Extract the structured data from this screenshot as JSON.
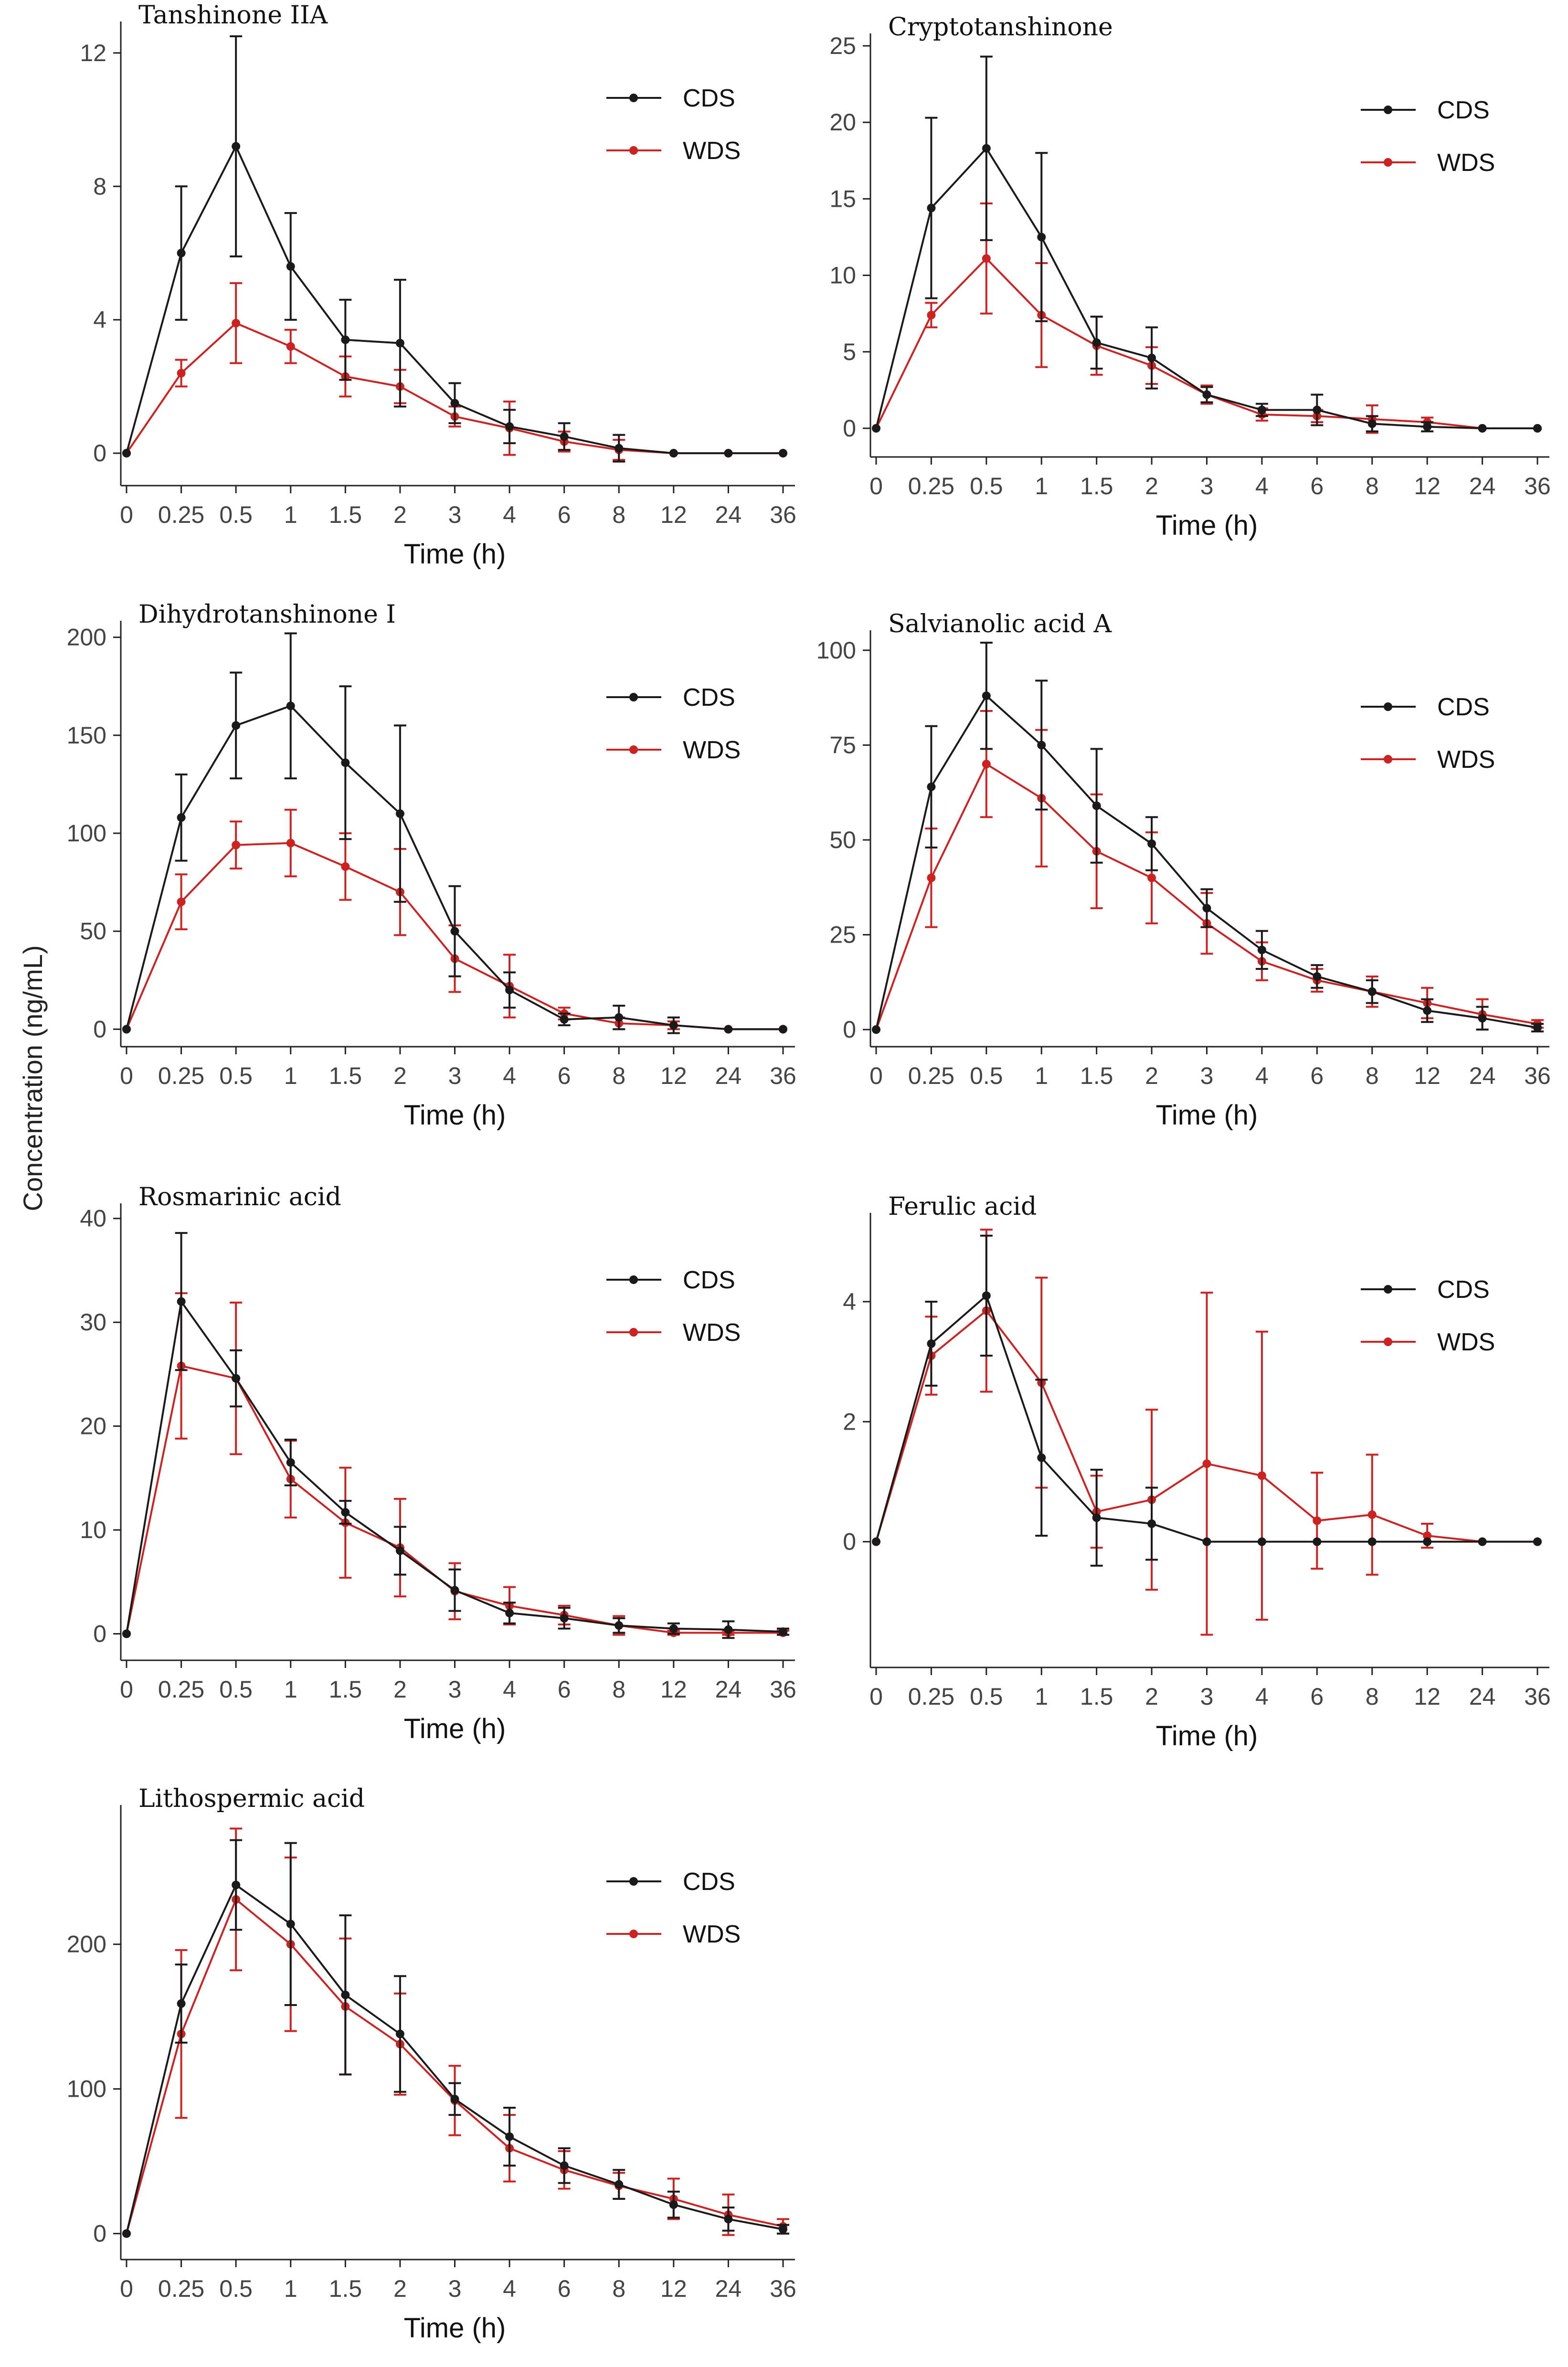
{
  "figure": {
    "ylabel": "Concentration (ng/mL)",
    "colors": {
      "CDS": "#1a1a1a",
      "WDS": "#cc2222"
    }
  },
  "chart_data": [
    {
      "type": "line",
      "title": "Tanshinone IIA",
      "xlabel": "Time (h)",
      "ylabel": "Concentration (ng/mL)",
      "categories": [
        "0",
        "0.25",
        "0.5",
        "1",
        "1.5",
        "2",
        "3",
        "4",
        "6",
        "8",
        "12",
        "24",
        "36"
      ],
      "ylim": [
        -0.8,
        12.8
      ],
      "yticks": [
        0,
        4,
        8,
        12
      ],
      "legend_position": "top-right",
      "series": [
        {
          "name": "CDS",
          "values": [
            0,
            6.0,
            9.2,
            5.6,
            3.4,
            3.3,
            1.5,
            0.8,
            0.5,
            0.15,
            0,
            0,
            0
          ],
          "err": [
            0,
            2.0,
            3.3,
            1.6,
            1.2,
            1.9,
            0.6,
            0.5,
            0.4,
            0.4,
            0,
            0,
            0
          ]
        },
        {
          "name": "WDS",
          "values": [
            0,
            2.4,
            3.9,
            3.2,
            2.3,
            2.0,
            1.1,
            0.75,
            0.35,
            0.1,
            0,
            0,
            0
          ],
          "err": [
            0,
            0.4,
            1.2,
            0.5,
            0.6,
            0.5,
            0.3,
            0.8,
            0.3,
            0.3,
            0,
            0,
            0
          ]
        }
      ]
    },
    {
      "type": "line",
      "title": "Cryptotanshinone",
      "xlabel": "Time (h)",
      "ylabel": "Concentration (ng/mL)",
      "categories": [
        "0",
        "0.25",
        "0.5",
        "1",
        "1.5",
        "2",
        "3",
        "4",
        "6",
        "8",
        "12",
        "24",
        "36"
      ],
      "ylim": [
        -1.5,
        25.5
      ],
      "yticks": [
        0,
        5,
        10,
        15,
        20,
        25
      ],
      "legend_position": "top-right",
      "series": [
        {
          "name": "CDS",
          "values": [
            0,
            14.4,
            18.3,
            12.5,
            5.6,
            4.6,
            2.2,
            1.2,
            1.2,
            0.3,
            0.1,
            0,
            0
          ],
          "err": [
            0,
            5.9,
            6.0,
            5.5,
            1.7,
            2.0,
            0.5,
            0.4,
            1.0,
            0.5,
            0.3,
            0,
            0
          ]
        },
        {
          "name": "WDS",
          "values": [
            0,
            7.4,
            11.1,
            7.4,
            5.4,
            4.1,
            2.2,
            0.9,
            0.8,
            0.6,
            0.4,
            0,
            0
          ],
          "err": [
            0,
            0.8,
            3.6,
            3.4,
            1.9,
            1.2,
            0.6,
            0.4,
            0.4,
            0.9,
            0.3,
            0,
            0
          ]
        }
      ]
    },
    {
      "type": "line",
      "title": "Dihydrotanshinone I",
      "xlabel": "Time (h)",
      "ylabel": "Concentration (ng/mL)",
      "categories": [
        "0",
        "0.25",
        "0.5",
        "1",
        "1.5",
        "2",
        "3",
        "4",
        "6",
        "8",
        "12",
        "24",
        "36"
      ],
      "ylim": [
        -6,
        206
      ],
      "yticks": [
        0,
        50,
        100,
        150,
        200
      ],
      "legend_position": "top-right",
      "series": [
        {
          "name": "CDS",
          "values": [
            0,
            108,
            155,
            165,
            136,
            110,
            50,
            20,
            5,
            6,
            2,
            0,
            0
          ],
          "err": [
            0,
            22,
            27,
            37,
            39,
            45,
            23,
            9,
            3,
            6,
            4,
            0,
            0
          ]
        },
        {
          "name": "WDS",
          "values": [
            0,
            65,
            94,
            95,
            83,
            70,
            36,
            22,
            8,
            3,
            2,
            0,
            0
          ],
          "err": [
            0,
            14,
            12,
            17,
            17,
            22,
            17,
            16,
            3,
            3,
            2,
            0,
            0
          ]
        }
      ]
    },
    {
      "type": "line",
      "title": "Salvianolic acid A",
      "xlabel": "Time (h)",
      "ylabel": "Concentration (ng/mL)",
      "categories": [
        "0",
        "0.25",
        "0.5",
        "1",
        "1.5",
        "2",
        "3",
        "4",
        "6",
        "8",
        "12",
        "24",
        "36"
      ],
      "ylim": [
        -3,
        104
      ],
      "yticks": [
        0,
        25,
        50,
        75,
        100
      ],
      "legend_position": "top-right",
      "series": [
        {
          "name": "CDS",
          "values": [
            0,
            64,
            88,
            75,
            59,
            49,
            32,
            21,
            14,
            10,
            5,
            3,
            0.5
          ],
          "err": [
            0,
            16,
            14,
            17,
            15,
            7,
            5,
            5,
            3,
            3,
            3,
            3,
            1
          ]
        },
        {
          "name": "WDS",
          "values": [
            0,
            40,
            70,
            61,
            47,
            40,
            28,
            18,
            13,
            10,
            7,
            4,
            1.5
          ],
          "err": [
            0,
            13,
            14,
            18,
            15,
            12,
            8,
            5,
            3,
            4,
            4,
            4,
            1
          ]
        }
      ]
    },
    {
      "type": "line",
      "title": "Rosmarinic acid",
      "xlabel": "Time (h)",
      "ylabel": "Concentration (ng/mL)",
      "categories": [
        "0",
        "0.25",
        "0.5",
        "1",
        "1.5",
        "2",
        "3",
        "4",
        "6",
        "8",
        "12",
        "24",
        "36"
      ],
      "ylim": [
        -2,
        41
      ],
      "yticks": [
        0,
        10,
        20,
        30,
        40
      ],
      "legend_position": "top-right",
      "series": [
        {
          "name": "CDS",
          "values": [
            0,
            32,
            24.6,
            16.5,
            11.7,
            8.0,
            4.2,
            2.0,
            1.5,
            0.8,
            0.5,
            0.4,
            0.2
          ],
          "err": [
            0,
            6.6,
            2.7,
            2.2,
            1.1,
            2.3,
            2.0,
            1.0,
            1.0,
            0.7,
            0.5,
            0.8,
            0.3
          ]
        },
        {
          "name": "WDS",
          "values": [
            0,
            25.8,
            24.6,
            14.9,
            10.7,
            8.3,
            4.1,
            2.7,
            1.8,
            0.8,
            0.1,
            0.1,
            0.1
          ],
          "err": [
            0,
            7.0,
            7.3,
            3.7,
            5.3,
            4.7,
            2.7,
            1.8,
            0.9,
            0.9,
            0.2,
            0.2,
            0.2
          ]
        }
      ]
    },
    {
      "type": "line",
      "title": "Ferulic acid",
      "xlabel": "Time (h)",
      "ylabel": "Concentration (ng/mL)",
      "categories": [
        "0",
        "0.25",
        "0.5",
        "1",
        "1.5",
        "2",
        "3",
        "4",
        "6",
        "8",
        "12",
        "24",
        "36"
      ],
      "ylim": [
        -2.0,
        5.4
      ],
      "yticks": [
        0,
        2,
        4
      ],
      "legend_position": "top-right",
      "series": [
        {
          "name": "CDS",
          "values": [
            0,
            3.3,
            4.1,
            1.4,
            0.4,
            0.3,
            0,
            0,
            0,
            0,
            0,
            0,
            0
          ],
          "err": [
            0,
            0.7,
            1.0,
            1.3,
            0.8,
            0.6,
            0,
            0,
            0,
            0,
            0,
            0,
            0
          ]
        },
        {
          "name": "WDS",
          "values": [
            0,
            3.1,
            3.85,
            2.65,
            0.5,
            0.7,
            1.3,
            1.1,
            0.35,
            0.45,
            0.1,
            0,
            0
          ],
          "err": [
            0,
            0.65,
            1.35,
            1.75,
            0.6,
            1.5,
            2.85,
            2.4,
            0.8,
            1.0,
            0.2,
            0,
            0
          ]
        }
      ]
    },
    {
      "type": "line",
      "title": "Lithospermic acid",
      "xlabel": "Time (h)",
      "ylabel": "Concentration (ng/mL)",
      "categories": [
        "0",
        "0.25",
        "0.5",
        "1",
        "1.5",
        "2",
        "3",
        "4",
        "6",
        "8",
        "12",
        "24",
        "36"
      ],
      "ylim": [
        -14,
        293
      ],
      "yticks": [
        0,
        100,
        200
      ],
      "legend_position": "top-right",
      "series": [
        {
          "name": "CDS",
          "values": [
            0,
            159,
            241,
            214,
            165,
            138,
            93,
            67,
            47,
            34,
            20,
            10,
            3
          ],
          "err": [
            0,
            27,
            31,
            56,
            55,
            40,
            11,
            20,
            12,
            10,
            9,
            8,
            3
          ]
        },
        {
          "name": "WDS",
          "values": [
            0,
            138,
            231,
            200,
            157,
            131,
            92,
            59,
            44,
            33,
            24,
            13,
            5
          ],
          "err": [
            0,
            58,
            49,
            60,
            47,
            35,
            24,
            23,
            13,
            9,
            14,
            14,
            5
          ]
        }
      ]
    }
  ]
}
